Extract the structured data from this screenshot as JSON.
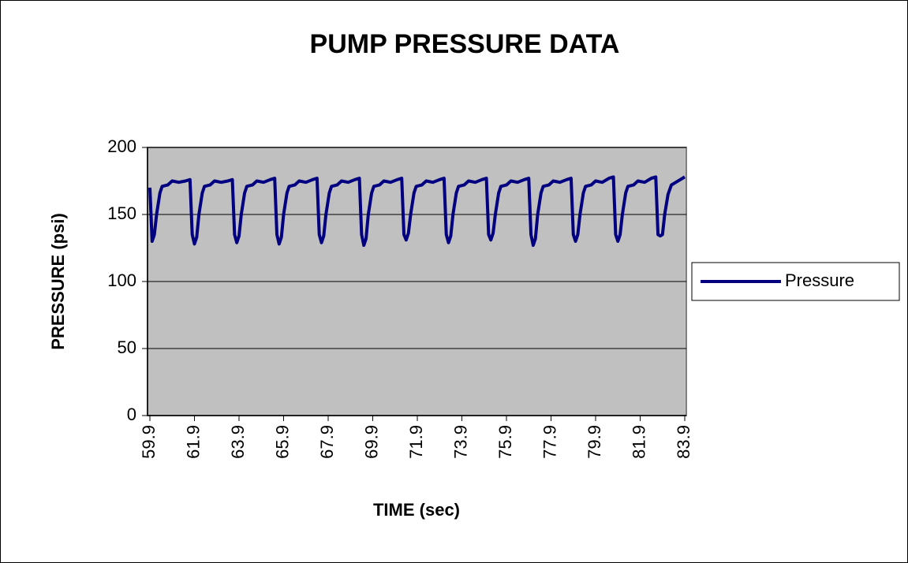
{
  "chart_data": {
    "type": "line",
    "title": "PUMP PRESSURE DATA",
    "x_label": "TIME (sec)",
    "y_label": "PRESSURE (psi)",
    "x": [
      59.9,
      60.0,
      60.1,
      60.2,
      60.35,
      60.45,
      60.7,
      60.9,
      61.2,
      61.5,
      61.7,
      61.8,
      61.9,
      62.0,
      62.1,
      62.25,
      62.35,
      62.6,
      62.8,
      63.1,
      63.4,
      63.6,
      63.7,
      63.8,
      63.9,
      64.0,
      64.15,
      64.25,
      64.5,
      64.7,
      65.0,
      65.3,
      65.5,
      65.6,
      65.7,
      65.8,
      65.9,
      66.05,
      66.15,
      66.4,
      66.6,
      66.9,
      67.2,
      67.4,
      67.5,
      67.6,
      67.7,
      67.8,
      67.95,
      68.05,
      68.3,
      68.5,
      68.8,
      69.1,
      69.3,
      69.4,
      69.5,
      69.6,
      69.7,
      69.85,
      69.95,
      70.2,
      70.4,
      70.7,
      71.0,
      71.2,
      71.3,
      71.4,
      71.5,
      71.6,
      71.75,
      71.85,
      72.1,
      72.3,
      72.6,
      72.9,
      73.1,
      73.2,
      73.3,
      73.4,
      73.5,
      73.65,
      73.75,
      74.0,
      74.2,
      74.5,
      74.8,
      75.0,
      75.1,
      75.2,
      75.3,
      75.4,
      75.55,
      75.65,
      75.9,
      76.1,
      76.4,
      76.7,
      76.9,
      77.0,
      77.1,
      77.2,
      77.3,
      77.45,
      77.55,
      77.8,
      78.0,
      78.3,
      78.6,
      78.8,
      78.9,
      79.0,
      79.1,
      79.2,
      79.35,
      79.45,
      79.7,
      79.9,
      80.2,
      80.5,
      80.7,
      80.8,
      80.9,
      81.0,
      81.1,
      81.25,
      81.35,
      81.6,
      81.8,
      82.1,
      82.4,
      82.6,
      82.7,
      82.8,
      82.9,
      83.0,
      83.15,
      83.3,
      83.5,
      83.7,
      83.9
    ],
    "series": [
      {
        "name": "Pressure",
        "color": "#000080",
        "values": [
          170,
          130,
          135,
          150,
          166,
          171,
          172,
          175,
          174,
          175,
          176,
          135,
          128,
          133,
          150,
          166,
          171,
          172,
          175,
          174,
          175,
          176,
          135,
          129,
          134,
          150,
          166,
          171,
          172,
          175,
          174,
          176,
          177,
          135,
          128,
          133,
          150,
          166,
          171,
          172,
          175,
          174,
          176,
          177,
          135,
          129,
          134,
          150,
          166,
          171,
          172,
          175,
          174,
          176,
          177,
          135,
          127,
          132,
          150,
          166,
          171,
          172,
          175,
          174,
          176,
          177,
          135,
          131,
          136,
          150,
          166,
          171,
          172,
          175,
          174,
          176,
          177,
          135,
          129,
          134,
          150,
          166,
          171,
          172,
          175,
          174,
          176,
          177,
          135,
          131,
          136,
          150,
          166,
          171,
          172,
          175,
          174,
          176,
          177,
          135,
          127,
          132,
          150,
          166,
          171,
          172,
          175,
          174,
          176,
          177,
          135,
          130,
          135,
          150,
          166,
          171,
          172,
          175,
          174,
          177,
          178,
          135,
          130,
          135,
          150,
          166,
          171,
          172,
          175,
          174,
          177,
          178,
          135,
          134,
          135,
          150,
          165,
          172,
          174,
          176,
          178
        ]
      }
    ],
    "xlim": [
      59.9,
      83.9
    ],
    "xticks": [
      59.9,
      61.9,
      63.9,
      65.9,
      67.9,
      69.9,
      71.9,
      73.9,
      75.9,
      77.9,
      79.9,
      81.9,
      83.9
    ],
    "ylim": [
      0,
      200
    ],
    "yticks": [
      0,
      50,
      100,
      150,
      200
    ],
    "grid": true,
    "legend": "right",
    "plot_background": "#c0c0c0"
  }
}
